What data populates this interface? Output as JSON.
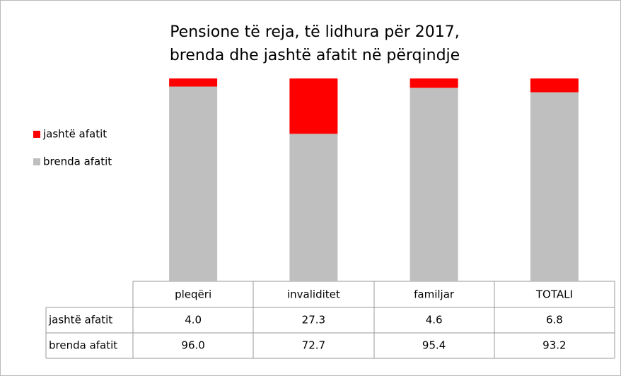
{
  "chart_data": {
    "type": "stacked-bar",
    "title": [
      "Pensione të reja, të lidhura për 2017,",
      "brenda dhe jashtë afatit në përqindje"
    ],
    "categories": [
      "pleqëri",
      "invaliditet",
      "familjar",
      "TOTALI"
    ],
    "series": [
      {
        "name": "jashtë afatit",
        "color": "#ff0000",
        "values": [
          4,
          27.3,
          4.6,
          6.8
        ],
        "value_labels": [
          "4.0",
          "27.3",
          "4.6",
          "6.8"
        ]
      },
      {
        "name": "brenda afatit",
        "color": "#bfbfbf",
        "values": [
          96,
          72.7,
          95.4,
          93.2
        ],
        "value_labels": [
          "96.0",
          "72.7",
          "95.4",
          "93.2"
        ]
      }
    ],
    "ylim": [
      0,
      100
    ],
    "legend": "left"
  }
}
